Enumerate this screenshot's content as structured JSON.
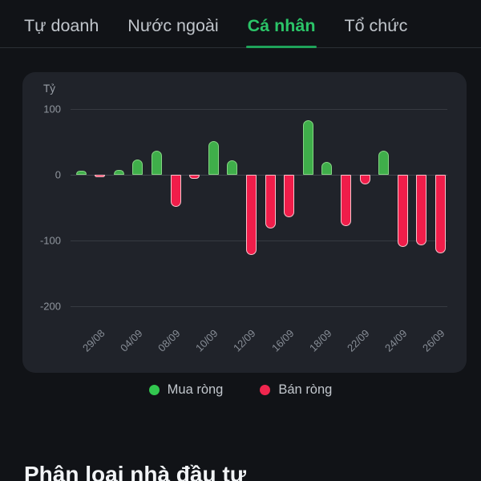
{
  "tabs": {
    "items": [
      {
        "label": "Tự doanh",
        "active": false
      },
      {
        "label": "Nước ngoài",
        "active": false
      },
      {
        "label": "Cá nhân",
        "active": true
      },
      {
        "label": "Tổ chức",
        "active": false
      }
    ],
    "active_color": "#2bc468"
  },
  "chart_data": {
    "type": "bar",
    "unit_label": "Tỷ",
    "y_ticks": [
      100,
      0,
      -100,
      -200
    ],
    "ylim": [
      -230,
      115
    ],
    "grid": "horizontal-only",
    "values": [
      6,
      -4,
      7,
      23,
      37,
      -49,
      -6,
      52,
      22,
      -122,
      -82,
      -65,
      83,
      20,
      -78,
      -15,
      37,
      -110,
      -108,
      -120
    ],
    "positive_series": "Mua ròng",
    "negative_series": "Bán ròng",
    "positive_color": "#3fae4a",
    "negative_color": "#f01d4a",
    "x_tick_labels": [
      {
        "label": "29/08",
        "bar_index": 1
      },
      {
        "label": "04/09",
        "bar_index": 3
      },
      {
        "label": "08/09",
        "bar_index": 5
      },
      {
        "label": "10/09",
        "bar_index": 7
      },
      {
        "label": "12/09",
        "bar_index": 9
      },
      {
        "label": "16/09",
        "bar_index": 11
      },
      {
        "label": "18/09",
        "bar_index": 13
      },
      {
        "label": "22/09",
        "bar_index": 15
      },
      {
        "label": "24/09",
        "bar_index": 17
      },
      {
        "label": "26/09",
        "bar_index": 19
      }
    ],
    "legend": [
      {
        "label": "Mua ròng",
        "color": "#32c74f"
      },
      {
        "label": "Bán ròng",
        "color": "#f0264e"
      }
    ],
    "legend_position": "bottom-center"
  },
  "section_heading": "Phân loại nhà đầu tư"
}
